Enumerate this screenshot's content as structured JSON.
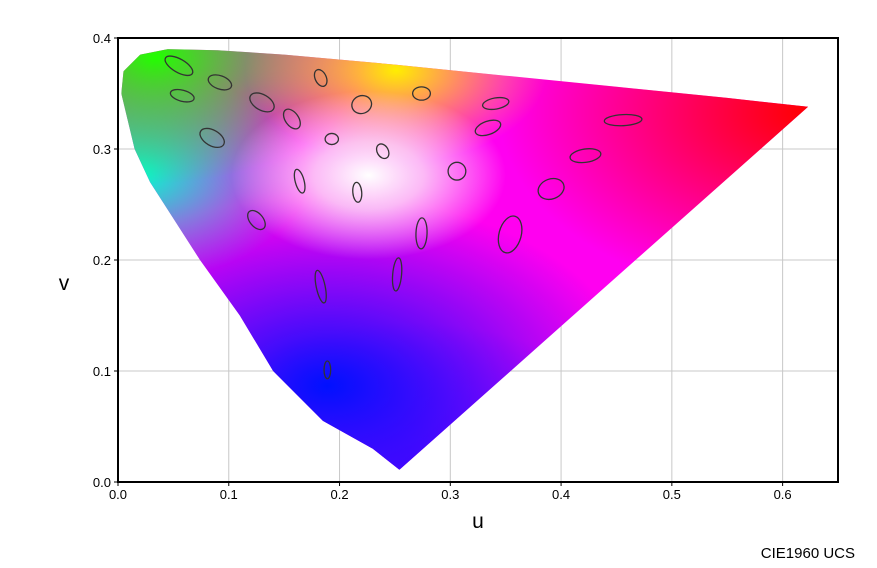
{
  "chart_data": {
    "type": "chromaticity",
    "caption": "CIE1960 UCS",
    "x_label": "u",
    "y_label": "v",
    "xlim": [
      0,
      0.65
    ],
    "ylim": [
      0,
      0.4
    ],
    "xticks": [
      {
        "value": 0,
        "label": "0.0"
      },
      0.1,
      0.2,
      0.3,
      0.4,
      0.5,
      0.6
    ],
    "yticks": [
      {
        "value": 0,
        "label": "0.0"
      },
      0.1,
      0.2,
      0.3,
      0.4
    ],
    "grid": true,
    "ellipse_color": "#333333",
    "locus": {
      "u": [
        0.254,
        0.23,
        0.185,
        0.14,
        0.11,
        0.074,
        0.029,
        0.015,
        0.003,
        0.005,
        0.02,
        0.045,
        0.09,
        0.15,
        0.25,
        0.35,
        0.45,
        0.55,
        0.623
      ],
      "v": [
        0.011,
        0.03,
        0.055,
        0.1,
        0.15,
        0.2,
        0.27,
        0.3,
        0.35,
        0.37,
        0.385,
        0.39,
        0.389,
        0.385,
        0.376,
        0.366,
        0.356,
        0.346,
        0.338
      ]
    },
    "ellipses": {
      "u": [
        0.055,
        0.058,
        0.092,
        0.13,
        0.157,
        0.085,
        0.183,
        0.193,
        0.22,
        0.274,
        0.341,
        0.334,
        0.456,
        0.422,
        0.239,
        0.306,
        0.391,
        0.164,
        0.216,
        0.125,
        0.274,
        0.354,
        0.183,
        0.252,
        0.189
      ],
      "v": [
        0.375,
        0.348,
        0.36,
        0.342,
        0.327,
        0.31,
        0.364,
        0.309,
        0.34,
        0.35,
        0.341,
        0.319,
        0.326,
        0.294,
        0.298,
        0.28,
        0.264,
        0.271,
        0.261,
        0.236,
        0.224,
        0.223,
        0.176,
        0.187,
        0.101
      ],
      "rx": [
        0.014,
        0.011,
        0.011,
        0.012,
        0.01,
        0.012,
        0.008,
        0.006,
        0.009,
        0.008,
        0.012,
        0.012,
        0.017,
        0.014,
        0.007,
        0.008,
        0.012,
        0.011,
        0.009,
        0.01,
        0.014,
        0.017,
        0.015,
        0.015,
        0.008
      ],
      "ry": [
        0.006,
        0.005,
        0.006,
        0.007,
        0.006,
        0.007,
        0.005,
        0.005,
        0.008,
        0.006,
        0.005,
        0.006,
        0.005,
        0.006,
        0.005,
        0.008,
        0.009,
        0.004,
        0.004,
        0.006,
        0.005,
        0.01,
        0.004,
        0.004,
        0.003
      ],
      "angle": [
        -30,
        -15,
        -20,
        -30,
        -55,
        -30,
        -65,
        0,
        20,
        0,
        10,
        20,
        3,
        8,
        -60,
        0,
        20,
        -75,
        -85,
        -50,
        88,
        75,
        -78,
        85,
        90
      ]
    }
  }
}
